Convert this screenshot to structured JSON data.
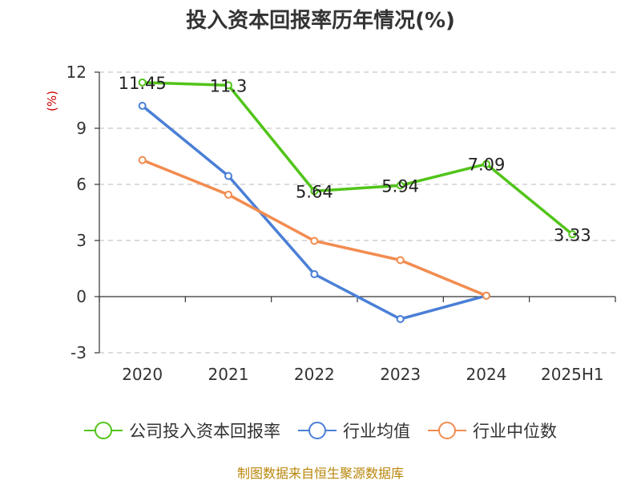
{
  "chart_data": {
    "type": "line",
    "title": "投入资本回报率历年情况(%)",
    "ylabel": "(%)",
    "xlabel": "",
    "categories": [
      "2020",
      "2021",
      "2022",
      "2023",
      "2024",
      "2025H1"
    ],
    "ylim": [
      -3,
      12
    ],
    "yticks": [
      -3,
      0,
      3,
      6,
      9,
      12
    ],
    "grid": true,
    "legend_position": "bottom",
    "series": [
      {
        "name": "公司投入资本回报率",
        "color": "#52c41a",
        "values": [
          11.45,
          11.3,
          5.64,
          5.94,
          7.09,
          3.33
        ],
        "labels": [
          "11.45",
          "11.3",
          "5.64",
          "5.94",
          "7.09",
          "3.33"
        ]
      },
      {
        "name": "行业均值",
        "color": "#4a7fd6",
        "values": [
          10.2,
          6.45,
          1.2,
          -1.2,
          0.05,
          null
        ],
        "labels": null
      },
      {
        "name": "行业中位数",
        "color": "#f28c50",
        "values": [
          7.3,
          5.45,
          2.98,
          1.95,
          0.05,
          null
        ],
        "labels": null
      }
    ],
    "source": "制图数据来自恒生聚源数据库"
  }
}
